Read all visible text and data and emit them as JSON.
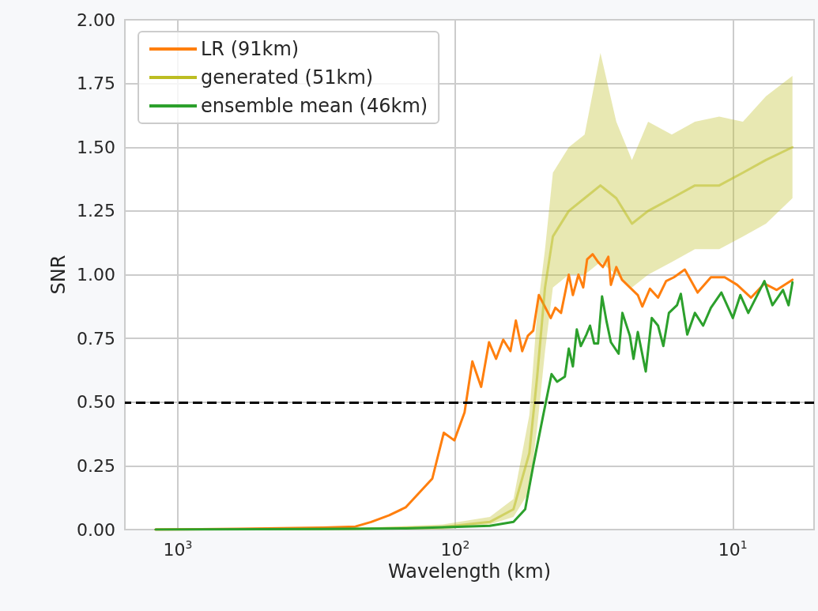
{
  "chart_data": {
    "type": "line",
    "xlabel": "Wavelength (km)",
    "ylabel": "SNR",
    "log": "x",
    "grid": true,
    "legend": "top left",
    "line_style": "solid",
    "marker": "none",
    "xlim": [
      1550,
      5.1
    ],
    "ylim": [
      0,
      2
    ],
    "xticks": [
      {
        "value": 1000,
        "label": "10$^{3}$"
      },
      {
        "value": 100,
        "label": "10$^{2}$"
      },
      {
        "value": 10,
        "label": "10$^{1}$"
      }
    ],
    "yticks": [
      {
        "value": 0,
        "label": "0.00"
      },
      {
        "value": 0.25,
        "label": "0.25"
      },
      {
        "value": 0.5,
        "label": "0.50"
      },
      {
        "value": 0.75,
        "label": "0.75"
      },
      {
        "value": 1,
        "label": "1.00"
      },
      {
        "value": 1.25,
        "label": "1.25"
      },
      {
        "value": 1.5,
        "label": "1.50"
      },
      {
        "value": 1.75,
        "label": "1.75"
      },
      {
        "value": 2,
        "label": "2.00"
      }
    ],
    "ref_lines": [
      {
        "axis": "y",
        "value": 0.5,
        "color": "#000000",
        "line_style": "dashed"
      }
    ],
    "series": [
      {
        "name": "LR (91km)",
        "color": "#ff7f0e",
        "x": [
          1201,
          600,
          300,
          229,
          201,
          173,
          151,
          121,
          110,
          100.8,
          92.6,
          86.8,
          80.7,
          75.6,
          71.3,
          67.2,
          63.3,
          60.5,
          57.4,
          54.8,
          52.4,
          50.0,
          45.3,
          43.6,
          41.6,
          39.0,
          37.7,
          36.0,
          34.6,
          33.5,
          32.0,
          30.6,
          29.4,
          28.1,
          27.5,
          26.3,
          25.1,
          23.5,
          22.0,
          21.2,
          19.9,
          18.6,
          17.4,
          16.3,
          14.9,
          13.4,
          12.0,
          10.7,
          9.65,
          8.6,
          7.7,
          6.95,
          6.1
        ],
        "values": [
          0,
          0.003,
          0.008,
          0.012,
          0.03,
          0.056,
          0.087,
          0.2,
          0.38,
          0.35,
          0.46,
          0.66,
          0.56,
          0.735,
          0.67,
          0.745,
          0.7,
          0.82,
          0.7,
          0.76,
          0.78,
          0.92,
          0.83,
          0.87,
          0.85,
          1.0,
          0.92,
          1.0,
          0.95,
          1.06,
          1.08,
          1.05,
          1.03,
          1.07,
          0.96,
          1.03,
          0.98,
          0.95,
          0.92,
          0.875,
          0.945,
          0.91,
          0.975,
          0.99,
          1.02,
          0.93,
          0.99,
          0.99,
          0.96,
          0.91,
          0.965,
          0.94,
          0.98
        ]
      },
      {
        "name": "generated (51km)",
        "color": "#bcbd22",
        "x": [
          1201,
          229,
          111,
          75.1,
          61.7,
          54.1,
          50.7,
          47.5,
          44.5,
          39.0,
          34.2,
          30.0,
          26.3,
          23.1,
          20.2,
          16.6,
          13.7,
          11.2,
          9.2,
          7.6,
          6.1
        ],
        "values": [
          0,
          0.003,
          0.01,
          0.03,
          0.08,
          0.3,
          0.6,
          0.95,
          1.15,
          1.25,
          1.3,
          1.35,
          1.3,
          1.2,
          1.25,
          1.3,
          1.35,
          1.35,
          1.4,
          1.45,
          1.5
        ],
        "lower": [
          0,
          0,
          0,
          0.02,
          0.05,
          0.15,
          0.4,
          0.7,
          0.95,
          1.0,
          1.0,
          1.05,
          1.0,
          0.95,
          1.0,
          1.05,
          1.1,
          1.1,
          1.15,
          1.2,
          1.3
        ],
        "upper": [
          0,
          0.005,
          0.02,
          0.05,
          0.12,
          0.45,
          0.85,
          1.1,
          1.4,
          1.5,
          1.55,
          1.87,
          1.6,
          1.45,
          1.6,
          1.55,
          1.6,
          1.62,
          1.6,
          1.7,
          1.78
        ]
      },
      {
        "name": "ensemble mean (46km)",
        "color": "#2ca02c",
        "x": [
          1201,
          300,
          150,
          75.1,
          61.7,
          56,
          52.4,
          48.4,
          45.0,
          43.0,
          40.3,
          39.0,
          37.7,
          36.5,
          35.3,
          33.7,
          32.7,
          31.6,
          30.6,
          29.6,
          28.5,
          27.5,
          25.8,
          25.0,
          23.5,
          22.8,
          22.0,
          20.6,
          19.6,
          18.6,
          17.8,
          17.0,
          15.9,
          15.4,
          14.6,
          13.7,
          12.8,
          12.0,
          11.0,
          10.0,
          9.4,
          8.8,
          7.7,
          7.2,
          6.6,
          6.3,
          6.1
        ],
        "values": [
          0,
          0.002,
          0.005,
          0.015,
          0.03,
          0.08,
          0.25,
          0.44,
          0.61,
          0.58,
          0.6,
          0.71,
          0.64,
          0.785,
          0.72,
          0.765,
          0.8,
          0.73,
          0.73,
          0.915,
          0.815,
          0.735,
          0.69,
          0.85,
          0.76,
          0.67,
          0.775,
          0.62,
          0.83,
          0.8,
          0.72,
          0.85,
          0.88,
          0.925,
          0.765,
          0.85,
          0.8,
          0.87,
          0.93,
          0.83,
          0.92,
          0.85,
          0.975,
          0.88,
          0.94,
          0.88,
          0.97
        ]
      }
    ]
  }
}
